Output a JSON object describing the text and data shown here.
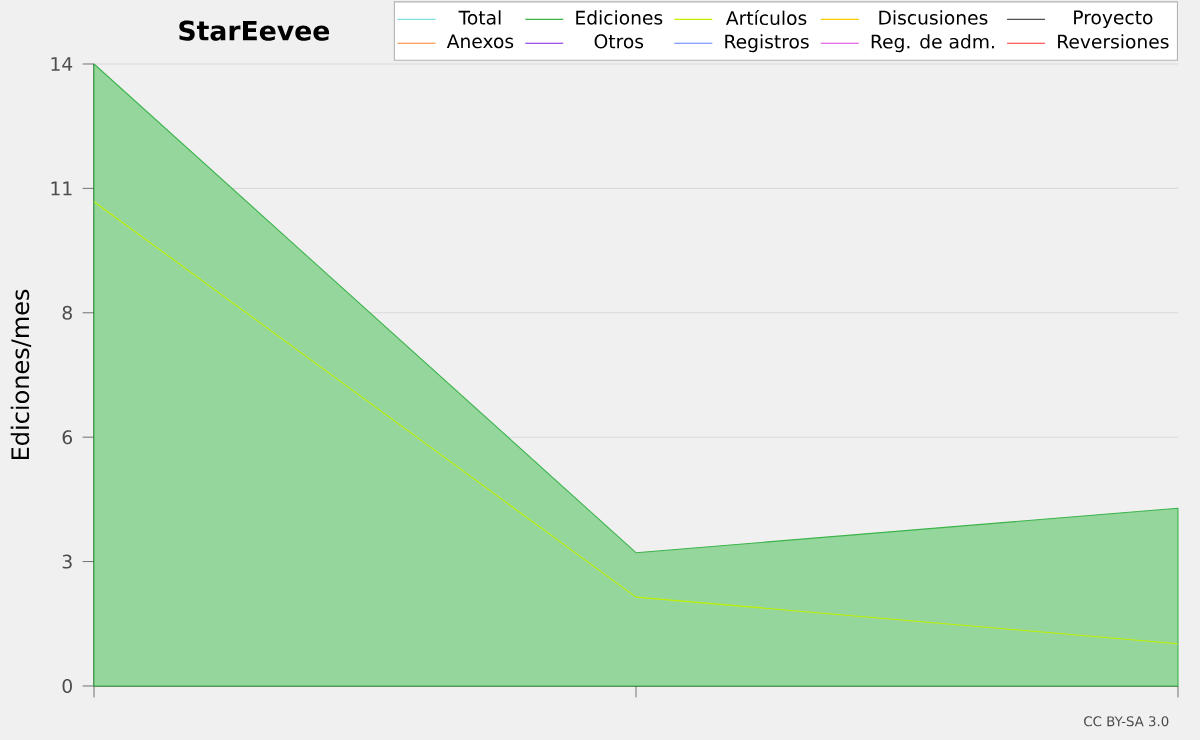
{
  "chart_data": {
    "type": "line",
    "title": "StarEevee",
    "ylabel": "Ediciones/mes",
    "categories": [
      null,
      null,
      null
    ],
    "ylim": [
      0,
      14
    ],
    "yticks": [
      0,
      {
        "value": 2.8,
        "label": "3"
      },
      {
        "value": 5.6,
        "label": "6"
      },
      {
        "value": 8.4,
        "label": "8"
      },
      {
        "value": 11.2,
        "label": "11"
      },
      14
    ],
    "grid": "y",
    "legend": "top right",
    "annotations": [
      "CC BY-SA 3.0"
    ],
    "series": [
      {
        "name": "Total",
        "color": "#80e0e0",
        "values": [
          null,
          null,
          null
        ]
      },
      {
        "name": "Ediciones",
        "color": "#3cb44b",
        "type": "area",
        "values": [
          14,
          3,
          4
        ]
      },
      {
        "name": "Artículos",
        "color": "#c0f000",
        "values": [
          10.9,
          2,
          0.95
        ]
      },
      {
        "name": "Discusiones",
        "color": "#ffcc00",
        "values": [
          null,
          null,
          null
        ]
      },
      {
        "name": "Proyecto",
        "color": "#505050",
        "values": [
          null,
          null,
          null
        ]
      },
      {
        "name": "Anexos",
        "color": "#ff8030",
        "values": [
          null,
          null,
          null
        ]
      },
      {
        "name": "Otros",
        "color": "#8020e0",
        "values": [
          null,
          null,
          null
        ]
      },
      {
        "name": "Registros",
        "color": "#6080ff",
        "values": [
          null,
          null,
          null
        ]
      },
      {
        "name": "Reg. de adm.",
        "color": "#e040e0",
        "values": [
          null,
          null,
          null
        ]
      },
      {
        "name": "Reversiones",
        "color": "#ff3030",
        "values": [
          null,
          null,
          null
        ]
      }
    ]
  }
}
